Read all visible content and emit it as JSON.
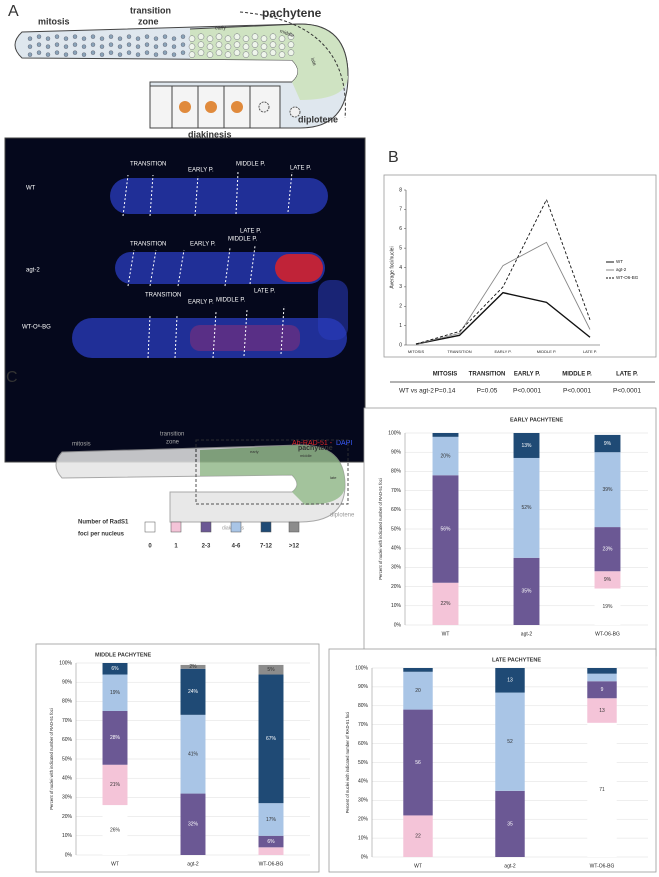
{
  "panel_labels": [
    "A",
    "B",
    "C"
  ],
  "schematic_a": {
    "mitosis": "mitosis",
    "transition": [
      "transition",
      "zone"
    ],
    "pachytene": "pachytene",
    "early": "early",
    "middle": "middle",
    "late": "late",
    "diakinesis": "diakinesis",
    "diplotene": "diplotene"
  },
  "micrograph": {
    "rows": [
      {
        "label": "WT",
        "zones": [
          "TRANSITION",
          "EARLY P.",
          "MIDDLE P.",
          "LATE P."
        ]
      },
      {
        "label": "agt-2",
        "zones": [
          "TRANSITION",
          "EARLY P.",
          "MIDDLE P.",
          "LATE P."
        ]
      },
      {
        "label": "WT-O⁶-BG",
        "zones": [
          "TRANSITION",
          "EARLY P.",
          "MIDDLE P.",
          "LATE P."
        ]
      }
    ],
    "legend": [
      "Ab-RAD-51 -",
      "DAPI"
    ]
  },
  "stats": {
    "header": [
      "MITOSIS",
      "TRANSITION",
      "EARLY P.",
      "MIDDLE P.",
      "LATE P."
    ],
    "row_label": "WT vs agt-2",
    "values": [
      "P=0.14",
      "P=0.05",
      "P<0.0001",
      "P<0.0001",
      "P<0.0001"
    ]
  },
  "schematic_c": {
    "mitosis": "mitosis",
    "transition": [
      "transition",
      "zone"
    ],
    "pachytene": "pachytene",
    "early": "early",
    "middle": "middle",
    "late": "late",
    "diakinesis": "diakinesis",
    "diplotene": "diplotene"
  },
  "legend_c": {
    "title": [
      "Number of RadS1",
      "foci per nucleus"
    ]
  },
  "chart_data": [
    {
      "type": "line",
      "ylabel": "Average foci/nuclei",
      "categories": [
        "MITOSIS",
        "TRANSITION",
        "EARLY P.",
        "MIDDLE P.",
        "LATE P."
      ],
      "ylim": [
        0,
        8
      ],
      "yticks": [
        0,
        1,
        2,
        3,
        4,
        5,
        6,
        7,
        8
      ],
      "legend": "right",
      "series": [
        {
          "name": "WT",
          "color": "#111111",
          "dash": "solid",
          "values": [
            0.05,
            0.5,
            2.7,
            2.2,
            0.4
          ]
        },
        {
          "name": "agt-2",
          "color": "#888888",
          "dash": "solid",
          "values": [
            0.05,
            0.6,
            4.1,
            5.3,
            0.8
          ]
        },
        {
          "name": "WT-O6-BG",
          "color": "#111111",
          "dash": "dashed",
          "values": [
            0.05,
            0.7,
            3.0,
            7.5,
            1.3
          ]
        }
      ]
    },
    {
      "type": "bar",
      "stacked": true,
      "title": "EARLY PACHYTENE",
      "ylabel": "Percent of nuclei with indicated number of RAD-51 foci",
      "categories": [
        "WT",
        "agt-2",
        "WT-O6-BG"
      ],
      "ylim": [
        0,
        100
      ],
      "yticks": [
        {
          "value": 0,
          "label": "0%"
        },
        {
          "value": 10,
          "label": "10%"
        },
        {
          "value": 20,
          "label": "20%"
        },
        {
          "value": 30,
          "label": "30%"
        },
        {
          "value": 40,
          "label": "40%"
        },
        {
          "value": 50,
          "label": "50%"
        },
        {
          "value": 60,
          "label": "60%"
        },
        {
          "value": 70,
          "label": "70%"
        },
        {
          "value": 80,
          "label": "80%"
        },
        {
          "value": 90,
          "label": "90%"
        },
        {
          "value": 100,
          "label": "100%"
        }
      ],
      "series": [
        {
          "name": "0",
          "color": "#ffffff",
          "values": [
            0,
            0,
            19
          ],
          "value_labels": [
            null,
            null,
            "19%"
          ]
        },
        {
          "name": "1",
          "color": "#f4c4d8",
          "values": [
            22,
            0,
            9
          ],
          "value_labels": [
            "22%",
            null,
            "9%"
          ]
        },
        {
          "name": "2-3",
          "color": "#6b5894",
          "values": [
            56,
            35,
            23
          ],
          "value_labels": [
            "56%",
            "35%",
            "23%"
          ]
        },
        {
          "name": "4-6",
          "color": "#a9c5e6",
          "values": [
            20,
            52,
            39
          ],
          "value_labels": [
            "20%",
            "52%",
            "39%"
          ]
        },
        {
          "name": "7-12",
          "color": "#1f4a75",
          "values": [
            2,
            13,
            9
          ],
          "value_labels": [
            null,
            "13%",
            "9%"
          ]
        },
        {
          "name": ">12",
          "color": "#8c8c8c",
          "values": [
            0,
            0,
            0
          ],
          "value_labels": [
            null,
            null,
            null
          ]
        }
      ]
    },
    {
      "type": "bar",
      "stacked": true,
      "title": "MIDDLE PACHYTENE",
      "ylabel": "Percent of nuclei with indicated number of RAD-51 foci",
      "categories": [
        "WT",
        "agt-2",
        "WT-O6-BG"
      ],
      "ylim": [
        0,
        100
      ],
      "yticks": [
        {
          "value": 0,
          "label": "0%"
        },
        {
          "value": 10,
          "label": "10%"
        },
        {
          "value": 20,
          "label": "20%"
        },
        {
          "value": 30,
          "label": "30%"
        },
        {
          "value": 40,
          "label": "40%"
        },
        {
          "value": 50,
          "label": "50%"
        },
        {
          "value": 60,
          "label": "60%"
        },
        {
          "value": 70,
          "label": "70%"
        },
        {
          "value": 80,
          "label": "80%"
        },
        {
          "value": 90,
          "label": "90%"
        },
        {
          "value": 100,
          "label": "100%"
        }
      ],
      "series": [
        {
          "name": "0",
          "color": "#ffffff",
          "values": [
            26,
            0,
            0
          ],
          "value_labels": [
            "26%",
            null,
            null
          ]
        },
        {
          "name": "1",
          "color": "#f4c4d8",
          "values": [
            21,
            0,
            4
          ],
          "value_labels": [
            "21%",
            null,
            null
          ]
        },
        {
          "name": "2-3",
          "color": "#6b5894",
          "values": [
            28,
            32,
            6
          ],
          "value_labels": [
            "28%",
            "32%",
            "6%"
          ]
        },
        {
          "name": "4-6",
          "color": "#a9c5e6",
          "values": [
            19,
            41,
            17
          ],
          "value_labels": [
            "19%",
            "41%",
            "17%"
          ]
        },
        {
          "name": "7-12",
          "color": "#1f4a75",
          "values": [
            6,
            24,
            67
          ],
          "value_labels": [
            "6%",
            "24%",
            "67%"
          ]
        },
        {
          "name": ">12",
          "color": "#8c8c8c",
          "values": [
            0,
            2,
            5
          ],
          "value_labels": [
            null,
            "2%",
            "5%"
          ]
        }
      ]
    },
    {
      "type": "bar",
      "stacked": true,
      "title": "LATE PACHYTENE",
      "ylabel": "Percent of nuclei with indicated number of RAD-51 foci",
      "categories": [
        "WT",
        "agt-2",
        "WT-O6-BG"
      ],
      "ylim": [
        0,
        100
      ],
      "yticks": [
        {
          "value": 0,
          "label": "0%"
        },
        {
          "value": 10,
          "label": "10%"
        },
        {
          "value": 20,
          "label": "20%"
        },
        {
          "value": 30,
          "label": "30%"
        },
        {
          "value": 40,
          "label": "40%"
        },
        {
          "value": 50,
          "label": "50%"
        },
        {
          "value": 60,
          "label": "60%"
        },
        {
          "value": 70,
          "label": "70%"
        },
        {
          "value": 80,
          "label": "80%"
        },
        {
          "value": 90,
          "label": "90%"
        },
        {
          "value": 100,
          "label": "100%"
        }
      ],
      "series": [
        {
          "name": "0",
          "color": "#ffffff",
          "values": [
            0,
            0,
            71
          ],
          "value_labels": [
            null,
            null,
            "71"
          ]
        },
        {
          "name": "1",
          "color": "#f4c4d8",
          "values": [
            22,
            0,
            13
          ],
          "value_labels": [
            "22",
            null,
            "13"
          ]
        },
        {
          "name": "2-3",
          "color": "#6b5894",
          "values": [
            56,
            35,
            9
          ],
          "value_labels": [
            "56",
            "35",
            "9"
          ]
        },
        {
          "name": "4-6",
          "color": "#a9c5e6",
          "values": [
            20,
            52,
            4
          ],
          "value_labels": [
            "20",
            "52",
            null
          ]
        },
        {
          "name": "7-12",
          "color": "#1f4a75",
          "values": [
            2,
            13,
            3
          ],
          "value_labels": [
            null,
            "13",
            null
          ]
        },
        {
          "name": ">12",
          "color": "#8c8c8c",
          "values": [
            0,
            0,
            0
          ],
          "value_labels": [
            null,
            null,
            null
          ]
        }
      ]
    }
  ]
}
